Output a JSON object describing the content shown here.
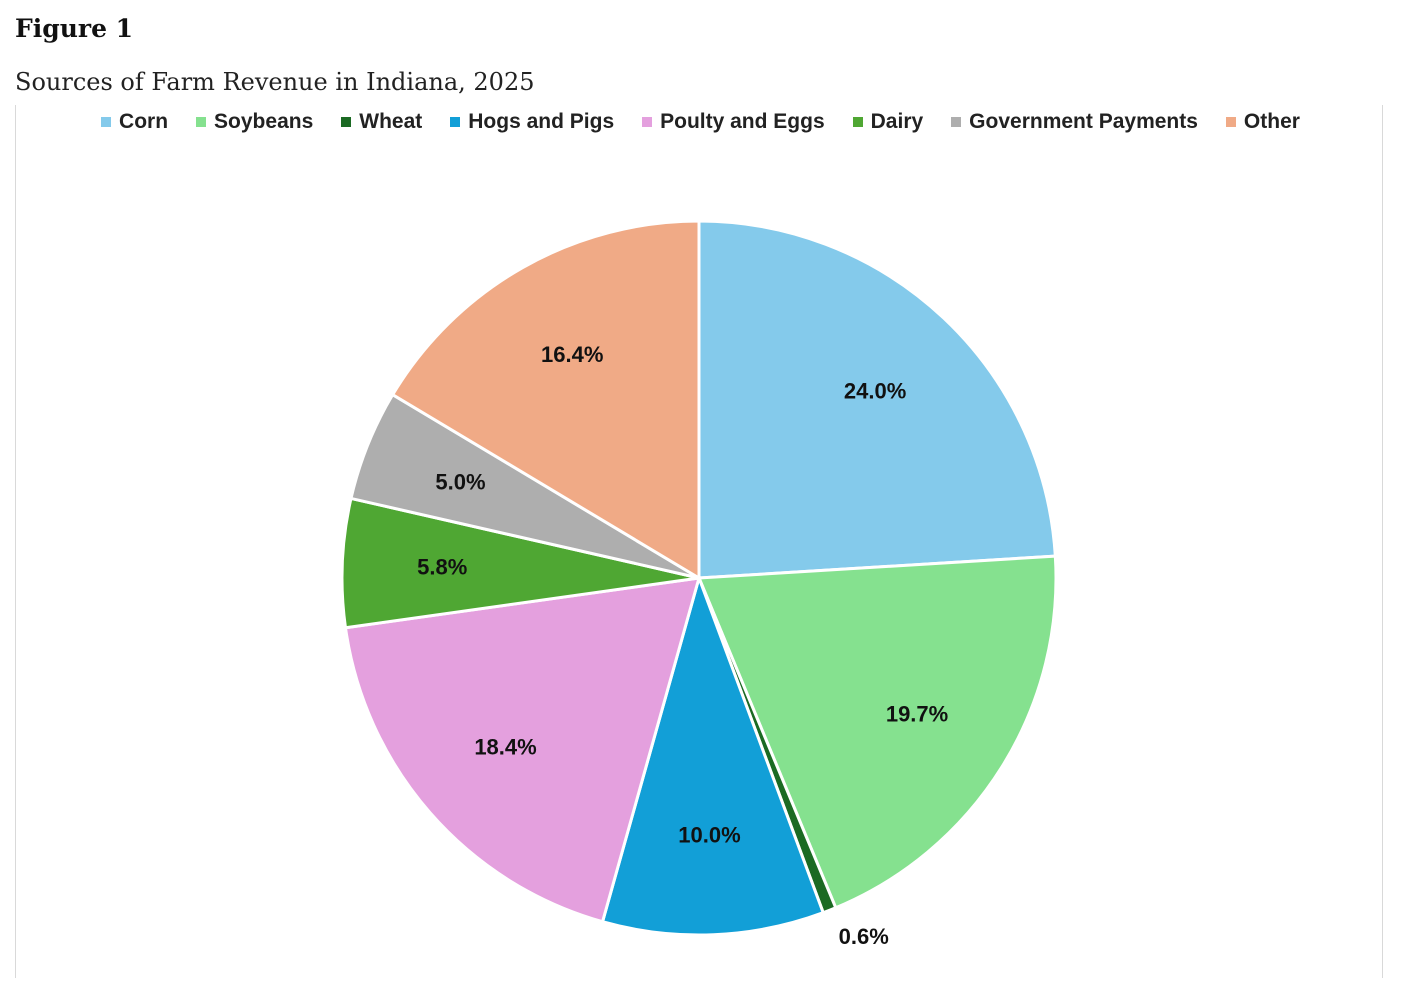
{
  "figure": {
    "label": "Figure 1",
    "title": "Sources of Farm Revenue in Indiana, 2025"
  },
  "chart_data": {
    "type": "pie",
    "title": "Sources of Farm Revenue in Indiana, 2025",
    "legend_position": "top",
    "categories": [
      "Corn",
      "Soybeans",
      "Wheat",
      "Hogs and Pigs",
      "Poulty and Eggs",
      "Dairy",
      "Government Payments",
      "Other"
    ],
    "values": [
      24.0,
      19.7,
      0.6,
      10.0,
      18.4,
      5.8,
      5.0,
      16.4
    ],
    "labels": [
      "24.0%",
      "19.7%",
      "0.6%",
      "10.0%",
      "18.4%",
      "5.8%",
      "5.0%",
      "16.4%"
    ],
    "colors": [
      "#84CAEB",
      "#85E18F",
      "#1B6A23",
      "#129FD7",
      "#E4A0DE",
      "#4FA733",
      "#AEAEAE",
      "#F0AA86"
    ]
  }
}
